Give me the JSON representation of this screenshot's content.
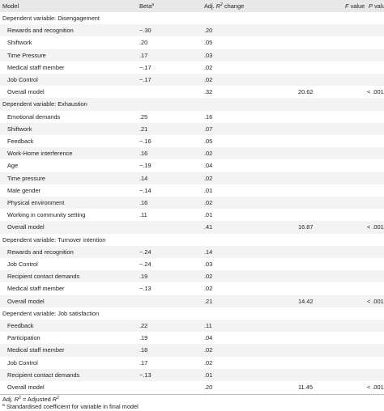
{
  "headers": {
    "model": "Model",
    "beta": "Beta",
    "beta_sup": "a",
    "adj_prefix": "Adj. ",
    "adj_r": "R",
    "adj_sup": "2",
    "adj_suffix": " change",
    "f": "F",
    "f_suffix": " value",
    "p": "P",
    "p_suffix": " value"
  },
  "rows": [
    {
      "label": "Dependent variable: Disengagement",
      "beta": "",
      "adj": "",
      "f": "",
      "p": "",
      "type": "section"
    },
    {
      "label": "Rewards and recognition",
      "beta": "−.30",
      "adj": ".20",
      "f": "",
      "p": "",
      "type": "item"
    },
    {
      "label": "Shiftwork",
      "beta": ".20",
      "adj": ".05",
      "f": "",
      "p": "",
      "type": "item"
    },
    {
      "label": "Time Pressure",
      "beta": ".17",
      "adj": ".03",
      "f": "",
      "p": "",
      "type": "item"
    },
    {
      "label": "Medical staff member",
      "beta": "−.17",
      "adj": ".02",
      "f": "",
      "p": "",
      "type": "item"
    },
    {
      "label": "Job Control",
      "beta": "−.17",
      "adj": ".02",
      "f": "",
      "p": "",
      "type": "item"
    },
    {
      "label": "Overall model",
      "beta": "",
      "adj": ".32",
      "f": "20.62",
      "p": "< .001",
      "type": "overall"
    },
    {
      "label": "Dependent variable: Exhaustion",
      "beta": "",
      "adj": "",
      "f": "",
      "p": "",
      "type": "section"
    },
    {
      "label": "Emotional demands",
      "beta": ".25",
      "adj": ".16",
      "f": "",
      "p": "",
      "type": "item"
    },
    {
      "label": "Shiftwork",
      "beta": ".21",
      "adj": ".07",
      "f": "",
      "p": "",
      "type": "item"
    },
    {
      "label": "Feedback",
      "beta": "−.16",
      "adj": ".05",
      "f": "",
      "p": "",
      "type": "item"
    },
    {
      "label": "Work-Home interference",
      "beta": ".16",
      "adj": ".02",
      "f": "",
      "p": "",
      "type": "item"
    },
    {
      "label": "Age",
      "beta": "−.19",
      "adj": ".04",
      "f": "",
      "p": "",
      "type": "item"
    },
    {
      "label": "Time pressure",
      "beta": ".14",
      "adj": ".02",
      "f": "",
      "p": "",
      "type": "item"
    },
    {
      "label": "Male gender",
      "beta": "−.14",
      "adj": ".01",
      "f": "",
      "p": "",
      "type": "item"
    },
    {
      "label": "Physical environment",
      "beta": ".16",
      "adj": ".02",
      "f": "",
      "p": "",
      "type": "item"
    },
    {
      "label": "Working in community setting",
      "beta": ".11",
      "adj": ".01",
      "f": "",
      "p": "",
      "type": "item"
    },
    {
      "label": "Overall model",
      "beta": "",
      "adj": ".41",
      "f": "16.87",
      "p": "< .001",
      "type": "overall"
    },
    {
      "label": "Dependent variable: Turnover intention",
      "beta": "",
      "adj": "",
      "f": "",
      "p": "",
      "type": "section"
    },
    {
      "label": "Rewards and recognition",
      "beta": "−.24",
      "adj": ".14",
      "f": "",
      "p": "",
      "type": "item"
    },
    {
      "label": "Job Control",
      "beta": "−.24",
      "adj": ".03",
      "f": "",
      "p": "",
      "type": "item"
    },
    {
      "label": "Recipient contact demands",
      "beta": ".19",
      "adj": ".02",
      "f": "",
      "p": "",
      "type": "item"
    },
    {
      "label": "Medical staff member",
      "beta": "−.13",
      "adj": ".02",
      "f": "",
      "p": "",
      "type": "item"
    },
    {
      "label": "Overall model",
      "beta": "",
      "adj": ".21",
      "f": "14.42",
      "p": "< .001",
      "type": "overall"
    },
    {
      "label": "Dependent variable: Job satisfaction",
      "beta": "",
      "adj": "",
      "f": "",
      "p": "",
      "type": "section"
    },
    {
      "label": "Feedback",
      "beta": ".22",
      "adj": ".11",
      "f": "",
      "p": "",
      "type": "item"
    },
    {
      "label": "Participation",
      "beta": ".19",
      "adj": ".04",
      "f": "",
      "p": "",
      "type": "item"
    },
    {
      "label": "Medical staff member",
      "beta": ".18",
      "adj": ".02",
      "f": "",
      "p": "",
      "type": "item"
    },
    {
      "label": "Job Control",
      "beta": ".17",
      "adj": ".02",
      "f": "",
      "p": "",
      "type": "item"
    },
    {
      "label": "Recipient contact demands",
      "beta": "−.13",
      "adj": ".01",
      "f": "",
      "p": "",
      "type": "item"
    },
    {
      "label": "Overall model",
      "beta": "",
      "adj": ".20",
      "f": "11.45",
      "p": "< .001",
      "type": "overall"
    }
  ],
  "footnotes": {
    "adj_prefix": "Adj. ",
    "adj_r": "R",
    "adj_sup": "2",
    "adj_eq": " = Adjusted ",
    "adj_r2": "R",
    "adj_sup2": "2",
    "std_sup": "a",
    "std_text": " Standardised coefficient for variable in final model"
  }
}
